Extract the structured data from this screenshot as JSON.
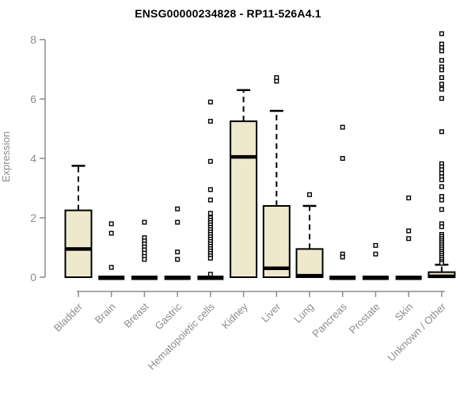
{
  "colors": {
    "box_fill": "#EEE8CD",
    "box_stroke": "#000000",
    "axis": "#8c8c8c",
    "title": "#000000",
    "outlier_fill": "#ffffff"
  },
  "chart_data": {
    "type": "boxplot",
    "title": "ENSG00000234828 - RP11-526A4.1",
    "ylabel": "Expression",
    "xlabel": "",
    "ylim": [
      0,
      8
    ],
    "yticks": [
      0,
      2,
      4,
      6,
      8
    ],
    "grid": false,
    "legend": false,
    "categories": [
      "Bladder",
      "Brain",
      "Breast",
      "Gastric",
      "Hematopoietic cells",
      "Kidney",
      "Liver",
      "Lung",
      "Pancreas",
      "Prostate",
      "Skin",
      "Unknown / Other"
    ],
    "series": [
      {
        "name": "Bladder",
        "q1": 0,
        "median": 0.95,
        "q3": 2.25,
        "whisker_low": 0,
        "whisker_high": 3.75,
        "outliers": []
      },
      {
        "name": "Brain",
        "q1": 0,
        "median": 0,
        "q3": 0,
        "whisker_low": 0,
        "whisker_high": 0,
        "outliers": [
          1.8,
          1.48,
          0.33
        ]
      },
      {
        "name": "Breast",
        "q1": 0,
        "median": 0,
        "q3": 0,
        "whisker_low": 0,
        "whisker_high": 0,
        "outliers": [
          1.85,
          1.33,
          1.22,
          1.12,
          1.02,
          0.92,
          0.81,
          0.7,
          0.6
        ]
      },
      {
        "name": "Gastric",
        "q1": 0,
        "median": 0,
        "q3": 0,
        "whisker_low": 0,
        "whisker_high": 0,
        "outliers": [
          2.3,
          1.85,
          0.85,
          0.6
        ]
      },
      {
        "name": "Hematopoietic cells",
        "q1": 0,
        "median": 0,
        "q3": 0,
        "whisker_low": 0,
        "whisker_high": 0,
        "outliers": [
          5.9,
          5.25,
          3.9,
          2.95,
          2.6,
          2.15,
          2.0,
          1.92,
          1.84,
          1.76,
          1.68,
          1.6,
          1.52,
          1.44,
          1.36,
          1.28,
          1.2,
          1.12,
          1.04,
          0.96,
          0.88,
          0.8,
          0.72,
          0.64,
          0.1
        ]
      },
      {
        "name": "Kidney",
        "q1": 0,
        "median": 4.05,
        "q3": 5.25,
        "whisker_low": 0,
        "whisker_high": 6.3,
        "outliers": []
      },
      {
        "name": "Liver",
        "q1": 0,
        "median": 0.3,
        "q3": 2.4,
        "whisker_low": 0,
        "whisker_high": 5.6,
        "outliers": [
          6.72,
          6.6
        ]
      },
      {
        "name": "Lung",
        "q1": 0,
        "median": 0.05,
        "q3": 0.95,
        "whisker_low": 0,
        "whisker_high": 2.4,
        "outliers": [
          2.78
        ]
      },
      {
        "name": "Pancreas",
        "q1": 0,
        "median": 0,
        "q3": 0,
        "whisker_low": 0,
        "whisker_high": 0,
        "outliers": [
          5.05,
          4.0,
          0.78,
          0.68
        ]
      },
      {
        "name": "Prostate",
        "q1": 0,
        "median": 0,
        "q3": 0,
        "whisker_low": 0,
        "whisker_high": 0,
        "outliers": [
          1.07,
          0.78
        ]
      },
      {
        "name": "Skin",
        "q1": 0,
        "median": 0,
        "q3": 0,
        "whisker_low": 0,
        "whisker_high": 0,
        "outliers": [
          2.67,
          1.56,
          1.3
        ]
      },
      {
        "name": "Unknown / Other",
        "q1": 0,
        "median": 0.03,
        "q3": 0.17,
        "whisker_low": 0,
        "whisker_high": 0.42,
        "outliers": [
          8.2,
          7.85,
          7.73,
          7.62,
          7.3,
          7.08,
          6.98,
          6.72,
          6.5,
          6.33,
          6.02,
          4.9,
          3.82,
          3.72,
          3.62,
          3.5,
          3.38,
          3.28,
          3.05,
          2.72,
          2.6,
          2.28,
          1.8,
          1.7,
          1.44,
          1.37,
          1.3,
          1.23,
          1.16,
          1.09,
          1.02,
          0.95,
          0.88,
          0.81,
          0.74,
          0.67,
          0.6,
          0.53,
          0.47
        ]
      }
    ]
  }
}
